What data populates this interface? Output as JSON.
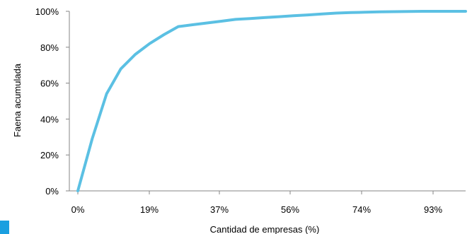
{
  "chart_data": {
    "type": "line",
    "xlabel": "Cantidad de empresas (%)",
    "ylabel": "Faena acumulada",
    "x_ticks": [
      "0%",
      "19%",
      "37%",
      "56%",
      "74%",
      "93%"
    ],
    "y_ticks": [
      "0%",
      "20%",
      "40%",
      "60%",
      "80%",
      "100%"
    ],
    "xlim": [
      0,
      100
    ],
    "ylim": [
      0,
      100
    ],
    "grid": false,
    "legend": "none",
    "series": [
      {
        "color": "#5bc0e3",
        "x": [
          0,
          3.7,
          7.4,
          11.1,
          14.8,
          18.5,
          22.2,
          25.9,
          29.6,
          33.3,
          37,
          40.7,
          44.4,
          48.1,
          51.9,
          55.6,
          59.3,
          63,
          66.7,
          70.4,
          74.1,
          77.8,
          81.5,
          85.2,
          88.9,
          92.6,
          96.3,
          100
        ],
        "y": [
          0,
          29,
          54,
          68,
          76,
          82,
          87,
          91.5,
          92.5,
          93.5,
          94.5,
          95.5,
          96,
          96.5,
          97,
          97.5,
          98,
          98.5,
          99,
          99.3,
          99.5,
          99.7,
          99.8,
          99.9,
          100,
          100,
          100,
          100
        ]
      }
    ]
  },
  "side_marker": {
    "color": "#1a9fe0"
  }
}
